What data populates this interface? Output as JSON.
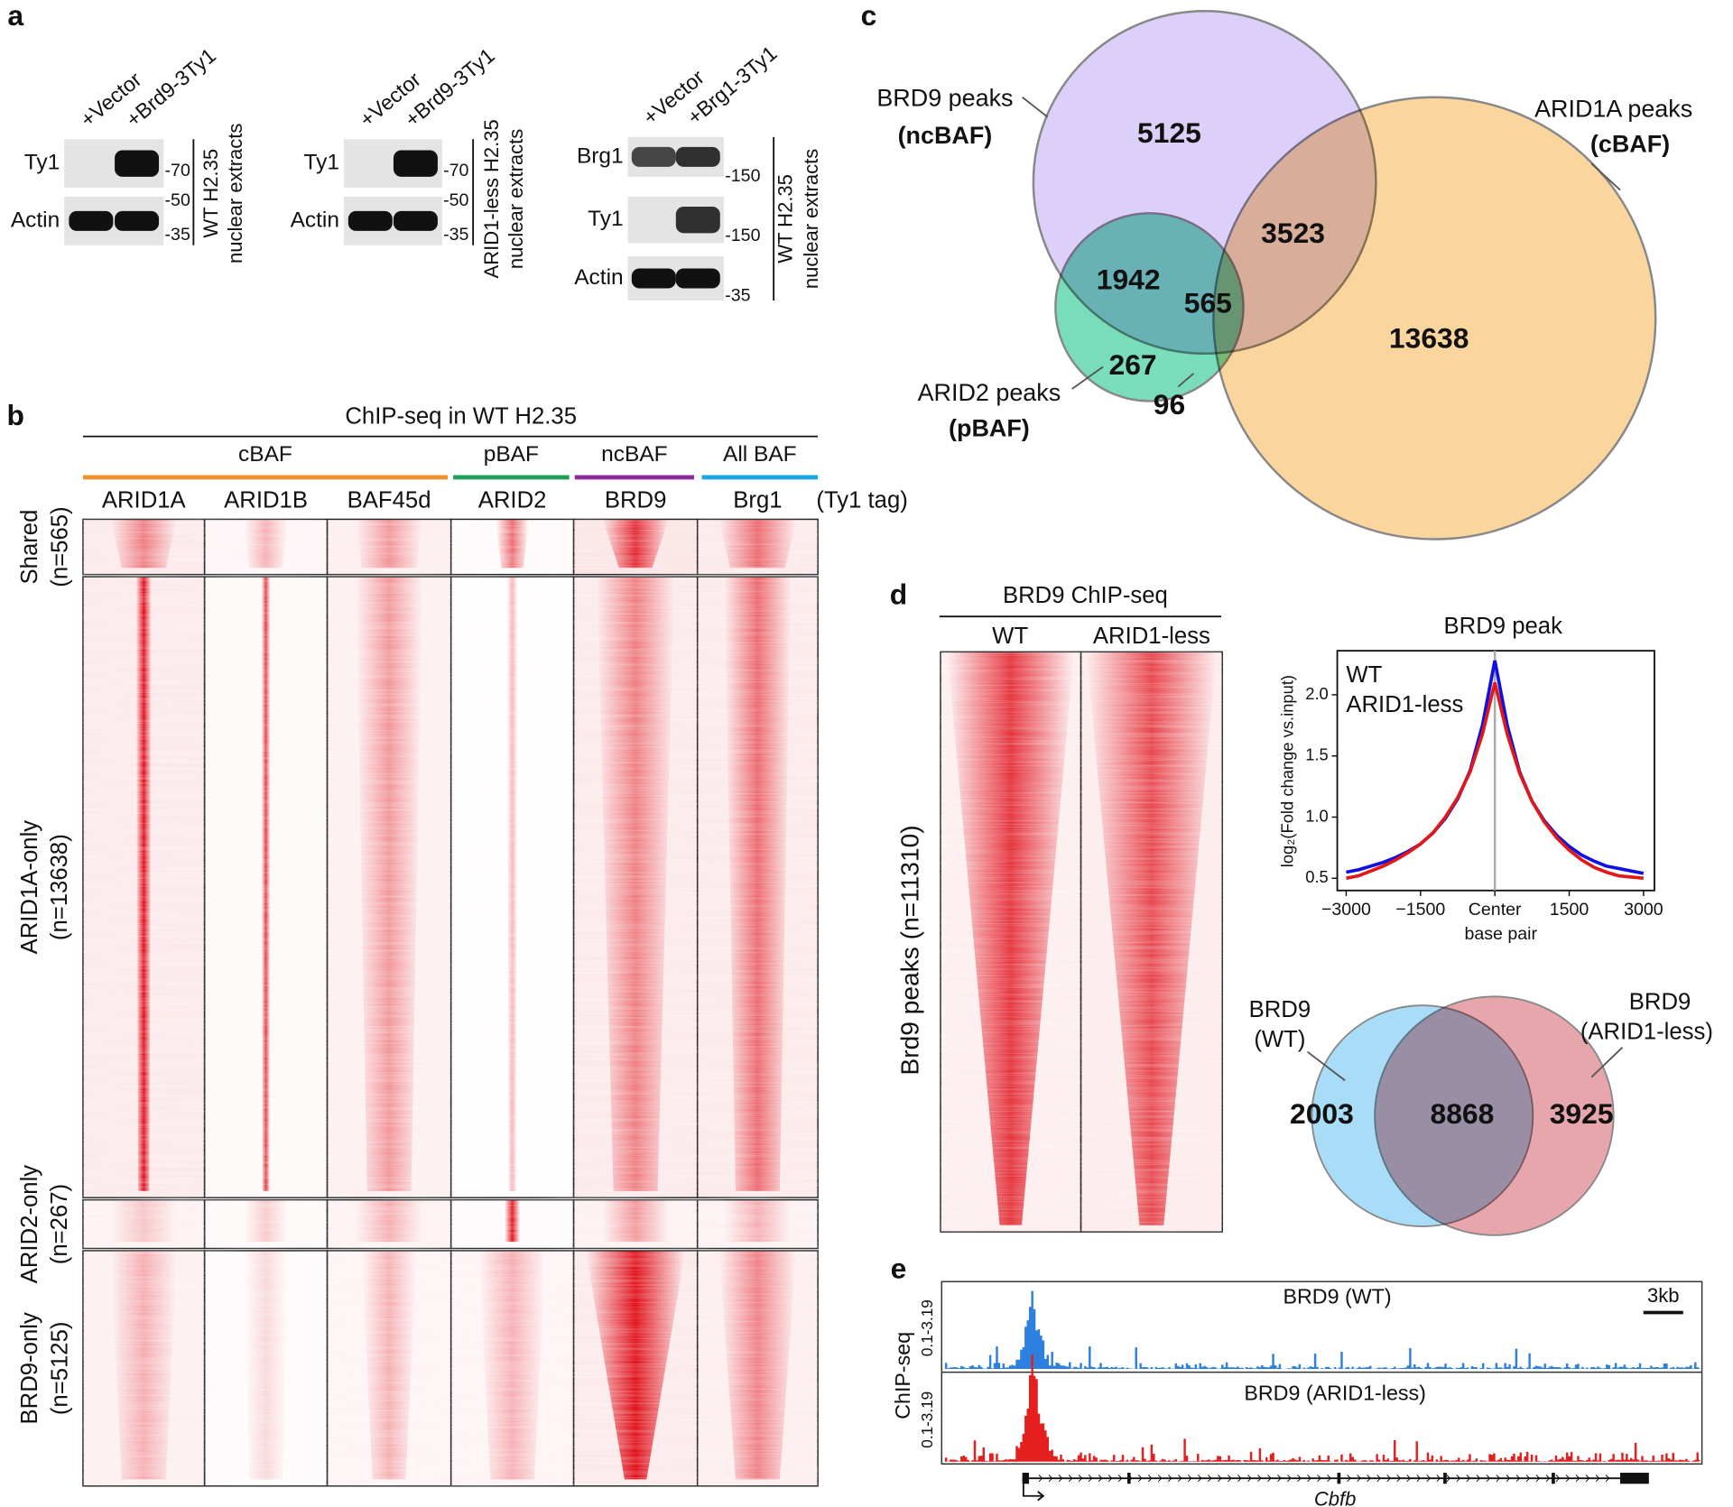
{
  "panel_a": {
    "label": "a",
    "blots": [
      {
        "lanes": [
          "+Vector",
          "+Brd9-3Ty1"
        ],
        "rows": [
          "Ty1",
          "Actin"
        ],
        "markers": [
          "-70",
          "-50",
          "-35"
        ],
        "sample": [
          "WT H2.35",
          "nuclear extracts"
        ]
      },
      {
        "lanes": [
          "+Vector",
          "+Brd9-3Ty1"
        ],
        "rows": [
          "Ty1",
          "Actin"
        ],
        "markers": [
          "-70",
          "-50",
          "-35"
        ],
        "sample": [
          "ARID1-less H2.35",
          "nuclear extracts"
        ]
      },
      {
        "lanes": [
          "+Vector",
          "+Brg1-3Ty1"
        ],
        "rows": [
          "Brg1",
          "Ty1",
          "Actin"
        ],
        "markers": [
          "-150",
          "-150",
          "-35"
        ],
        "sample": [
          "WT H2.35",
          "nuclear extracts"
        ]
      }
    ]
  },
  "panel_b": {
    "label": "b",
    "title": "ChIP-seq in WT H2.35",
    "groups": [
      {
        "name": "cBAF",
        "color": "#f0922c"
      },
      {
        "name": "pBAF",
        "color": "#22a05a"
      },
      {
        "name": "ncBAF",
        "color": "#8a2d9a"
      },
      {
        "name": "All BAF",
        "color": "#1aa6e0"
      }
    ],
    "columns": [
      "ARID1A",
      "ARID1B",
      "BAF45d",
      "ARID2",
      "BRD9",
      "Brg1"
    ],
    "tag": "(Ty1 tag)",
    "rows": [
      {
        "name": "Shared",
        "n": "(n=565)"
      },
      {
        "name": "ARID1A-only",
        "n": "(n=13638)"
      },
      {
        "name": "ARID2-only",
        "n": "(n=267)"
      },
      {
        "name": "BRD9-only",
        "n": "(n=5125)"
      }
    ]
  },
  "panel_c": {
    "label": "c",
    "sets": [
      {
        "name": "BRD9 peaks",
        "complex": "(ncBAF)"
      },
      {
        "name": "ARID1A peaks",
        "complex": "(cBAF)"
      },
      {
        "name": "ARID2 peaks",
        "complex": "(pBAF)"
      }
    ],
    "counts": [
      5125,
      3523,
      1942,
      565,
      13638,
      267,
      96
    ]
  },
  "panel_d": {
    "label": "d",
    "heatmap_title": "BRD9 ChIP-seq",
    "heatmap_columns": [
      "WT",
      "ARID1-less"
    ],
    "heatmap_rows": "Brd9 peaks (n=11310)",
    "venn": {
      "sets": [
        [
          "BRD9",
          "(WT)"
        ],
        [
          "BRD9",
          "(ARID1-less)"
        ]
      ],
      "counts": [
        2003,
        8868,
        3925
      ]
    }
  },
  "chart_data": {
    "type": "line",
    "title": "BRD9 peak",
    "y_label": "log₂(Fold change vs.input)",
    "x_label": "base pair",
    "x": [
      -3000,
      -2750,
      -2500,
      -2250,
      -2000,
      -1750,
      -1500,
      -1250,
      -1000,
      -750,
      -500,
      -250,
      0,
      250,
      500,
      750,
      1000,
      1250,
      1500,
      1750,
      2000,
      2250,
      2500,
      2750,
      3000
    ],
    "series": [
      {
        "name": "WT",
        "color": "#1010e0",
        "values": [
          0.55,
          0.57,
          0.6,
          0.63,
          0.67,
          0.72,
          0.78,
          0.87,
          0.99,
          1.15,
          1.38,
          1.75,
          2.28,
          1.75,
          1.37,
          1.13,
          0.97,
          0.85,
          0.76,
          0.69,
          0.64,
          0.6,
          0.58,
          0.56,
          0.54
        ]
      },
      {
        "name": "ARID1-less",
        "color": "#e01818",
        "values": [
          0.5,
          0.52,
          0.56,
          0.6,
          0.65,
          0.71,
          0.78,
          0.87,
          1.0,
          1.16,
          1.37,
          1.68,
          2.1,
          1.68,
          1.36,
          1.13,
          0.96,
          0.83,
          0.73,
          0.65,
          0.59,
          0.55,
          0.52,
          0.51,
          0.5
        ]
      }
    ],
    "xlim": [
      -3180,
      3220
    ],
    "ylim": [
      0.4,
      2.36
    ],
    "xticks": [
      {
        "value": -3000,
        "label": "−3000"
      },
      {
        "value": -1500,
        "label": "−1500"
      },
      {
        "value": 0,
        "label": "Center"
      },
      1500,
      3000
    ],
    "yticks": [
      0.5,
      {
        "value": 1,
        "label": "1.0"
      },
      1.5,
      {
        "value": 2,
        "label": "2.0"
      }
    ]
  },
  "panel_e": {
    "label": "e",
    "y_label": "ChIP-seq",
    "scale": "3kb",
    "gene": "Cbfb",
    "tracks": [
      {
        "name": "BRD9 (WT)",
        "range": "0.1-3.19",
        "color": "#2d7fe0"
      },
      {
        "name": "BRD9 (ARID1-less)",
        "range": "0.1-3.19",
        "color": "#e51e1e"
      }
    ]
  }
}
